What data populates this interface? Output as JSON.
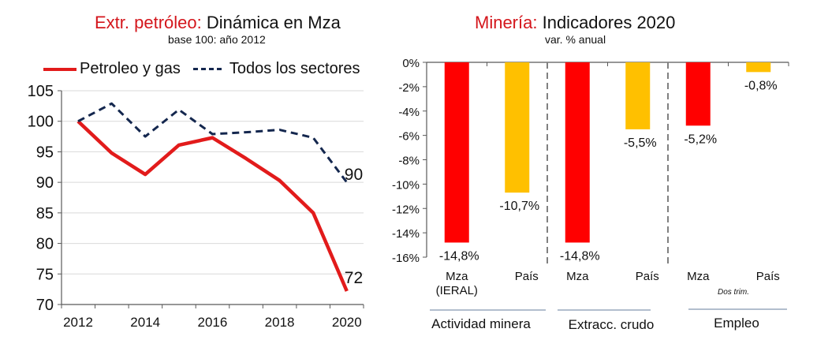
{
  "chart_data": [
    {
      "type": "line",
      "title_highlight": "Extr. petróleo:",
      "title_rest": " Dinámica en Mza",
      "subtitle": "base 100: año 2012",
      "xlabel": "",
      "ylabel": "",
      "x": [
        2012,
        2013,
        2014,
        2015,
        2016,
        2017,
        2018,
        2019,
        2020
      ],
      "xticks": [
        "2012",
        "2014",
        "2016",
        "2018",
        "2020"
      ],
      "xlim": [
        2011.5,
        2020.5
      ],
      "ylim": [
        70,
        105
      ],
      "yticks": [
        "105",
        "100",
        "95",
        "90",
        "85",
        "80",
        "75",
        "70"
      ],
      "grid": true,
      "legend_position": "top",
      "series": [
        {
          "name": "Petroleo y gas",
          "color": "#e21b1b",
          "style": "solid",
          "values": [
            100,
            94.8,
            91.3,
            96.1,
            97.3,
            93.9,
            90.3,
            85.0,
            72.2
          ],
          "end_label": "72"
        },
        {
          "name": "Todos los sectores",
          "color": "#14274e",
          "style": "dashed",
          "values": [
            100,
            102.9,
            97.5,
            101.9,
            97.9,
            98.2,
            98.6,
            97.3,
            90.0
          ],
          "end_label": "90"
        }
      ]
    },
    {
      "type": "bar",
      "title_highlight": "Minería:",
      "title_rest": " Indicadores 2020",
      "subtitle": "var. % anual",
      "ylim": [
        -16,
        0
      ],
      "yticks": [
        "0%",
        "-2%",
        "-4%",
        "-6%",
        "-8%",
        "-10%",
        "-12%",
        "-14%",
        "-16%"
      ],
      "categories": [
        "Mza (IERAL)",
        "País",
        "Mza",
        "País",
        "Mza",
        "País"
      ],
      "category_lines": [
        [
          "Mza",
          "(IERAL)"
        ],
        [
          "País"
        ],
        [
          "Mza"
        ],
        [
          "País"
        ],
        [
          "Mza"
        ],
        [
          "País"
        ]
      ],
      "values": [
        -14.8,
        -10.7,
        -14.8,
        -5.5,
        -5.2,
        -0.8
      ],
      "data_labels": [
        "-14,8%",
        "-10,7%",
        "-14,8%",
        "-5,5%",
        "-5,2%",
        "-0,8%"
      ],
      "colors": [
        "#ff0000",
        "#ffc000",
        "#ff0000",
        "#ffc000",
        "#ff0000",
        "#ffc000"
      ],
      "groups": [
        "Actividad minera",
        "Extracc. crudo",
        "Empleo"
      ],
      "note": "Dos trim."
    }
  ]
}
